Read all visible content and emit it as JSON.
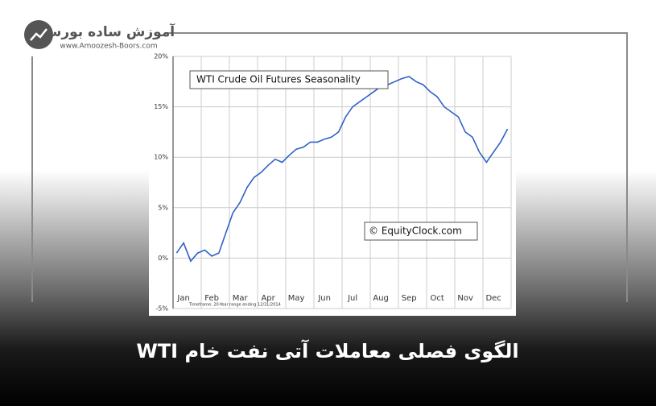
{
  "logo": {
    "name": "آموزش ساده بورس",
    "url": "www.Amoozesh-Boors.com"
  },
  "banner_title": "الگوی فصلی معاملات آتی نفت خام WTI",
  "chart_data": {
    "type": "line",
    "title": "WTI Crude Oil Futures Seasonality",
    "watermark": "© EquityClock.com",
    "footnote": "Timeframe: 20-Year range ending 12/31/2014",
    "categories": [
      null,
      "Jan",
      null,
      null,
      null,
      "Feb",
      null,
      null,
      null,
      "Mar",
      null,
      null,
      null,
      "Apr",
      null,
      null,
      null,
      "May",
      null,
      null,
      null,
      "Jun",
      null,
      null,
      null,
      "Jul",
      null,
      null,
      null,
      "Aug",
      null,
      null,
      null,
      "Sep",
      null,
      null,
      null,
      "Oct",
      null,
      null,
      null,
      "Nov",
      null,
      null,
      null,
      "Dec",
      null,
      null
    ],
    "series": [
      {
        "name": "WTI",
        "color": "#2f62c4",
        "values": [
          0.5,
          1.5,
          -0.3,
          0.5,
          0.8,
          0.2,
          0.5,
          2.5,
          4.5,
          5.5,
          7.0,
          8.0,
          8.5,
          9.2,
          9.8,
          9.5,
          10.2,
          10.8,
          11.0,
          11.5,
          11.5,
          11.8,
          12.0,
          12.5,
          14.0,
          15.0,
          15.5,
          16.0,
          16.5,
          17.0,
          17.2,
          17.5,
          17.8,
          18.0,
          17.5,
          17.2,
          16.5,
          16.0,
          15.0,
          14.5,
          14.0,
          12.5,
          12.0,
          10.5,
          9.5,
          10.5,
          11.5,
          12.8
        ]
      }
    ],
    "ylim": [
      -5,
      20
    ],
    "yticks": [
      {
        "value": -5,
        "label": "-5%"
      },
      {
        "value": 0,
        "label": "0%"
      },
      {
        "value": 5,
        "label": "5%"
      },
      {
        "value": 10,
        "label": "10%"
      },
      {
        "value": 15,
        "label": "15%"
      },
      {
        "value": 20,
        "label": "20%"
      }
    ],
    "grid": true
  }
}
